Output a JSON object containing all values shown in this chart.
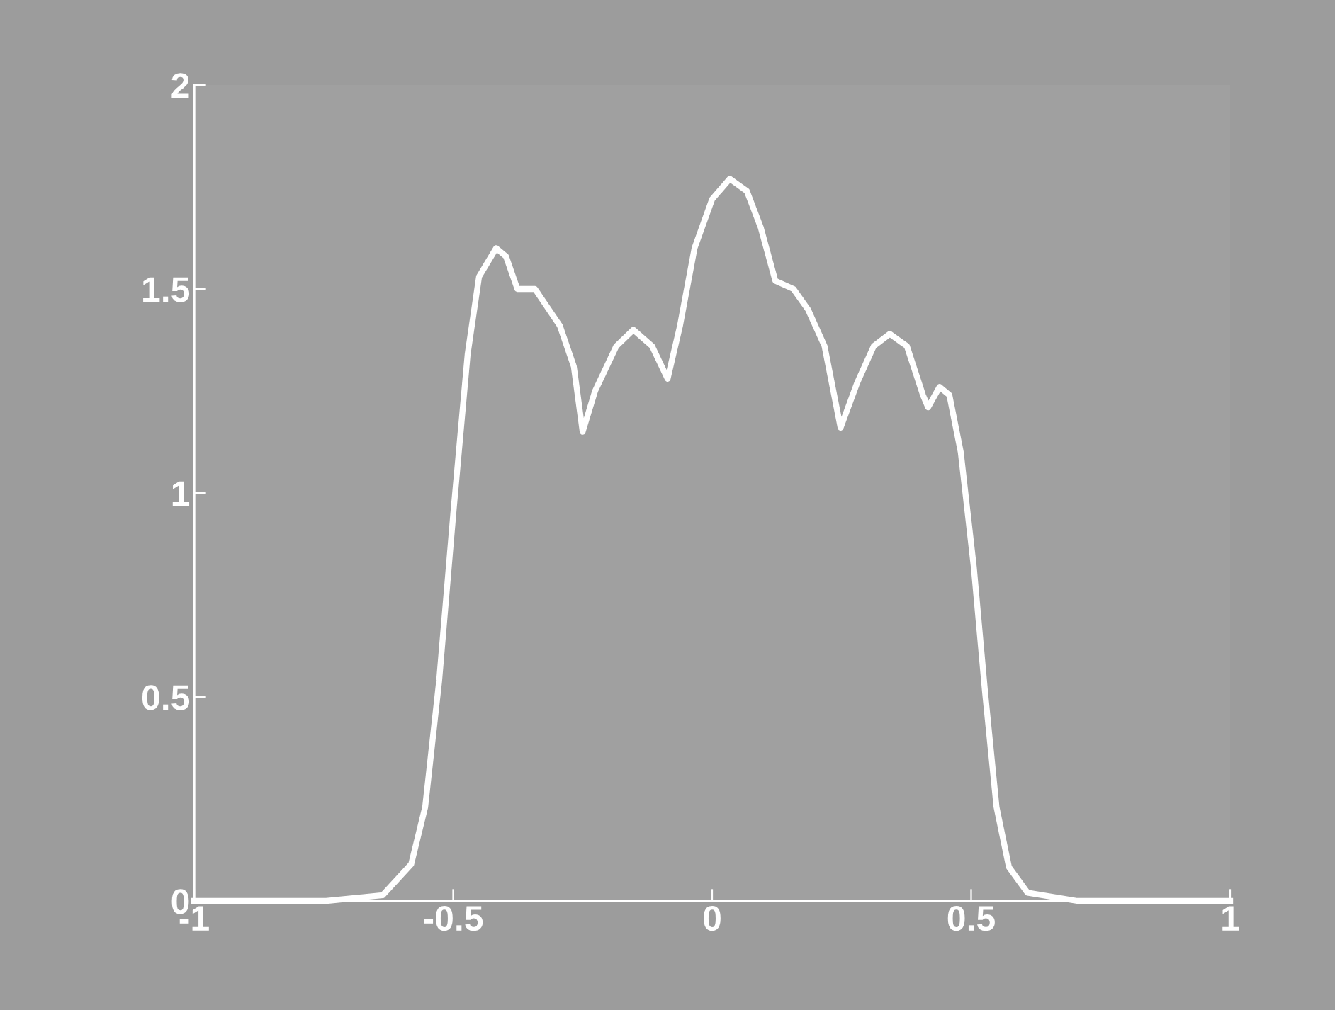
{
  "chart_data": {
    "type": "line",
    "x": [
      -1,
      -0.745,
      -0.636,
      -0.581,
      -0.554,
      -0.527,
      -0.499,
      -0.472,
      -0.45,
      -0.417,
      -0.398,
      -0.376,
      -0.342,
      -0.294,
      -0.267,
      -0.25,
      -0.226,
      -0.185,
      -0.152,
      -0.116,
      -0.086,
      -0.062,
      -0.034,
      0,
      0.034,
      0.067,
      0.094,
      0.122,
      0.157,
      0.185,
      0.217,
      0.248,
      0.28,
      0.312,
      0.343,
      0.376,
      0.407,
      0.417,
      0.439,
      0.458,
      0.48,
      0.505,
      0.527,
      0.549,
      0.573,
      0.609,
      0.705,
      1
    ],
    "series": [
      {
        "color": "#ffffff",
        "values": [
          0,
          0,
          0.014,
          0.09,
          0.23,
          0.54,
          0.96,
          1.34,
          1.53,
          1.6,
          1.58,
          1.5,
          1.5,
          1.41,
          1.31,
          1.15,
          1.25,
          1.36,
          1.4,
          1.36,
          1.28,
          1.41,
          1.6,
          1.72,
          1.77,
          1.74,
          1.65,
          1.52,
          1.5,
          1.45,
          1.36,
          1.16,
          1.27,
          1.36,
          1.39,
          1.36,
          1.24,
          1.21,
          1.26,
          1.24,
          1.1,
          0.82,
          0.51,
          0.23,
          0.083,
          0.02,
          0,
          0
        ]
      }
    ],
    "xlim": [
      -1,
      1
    ],
    "ylim": [
      0,
      2
    ],
    "xticks": [
      {
        "value": -1,
        "label": "-1"
      },
      {
        "value": -0.5,
        "label": "-0.5"
      },
      0,
      0.5,
      1
    ],
    "yticks": [
      0,
      0.5,
      1,
      1.5,
      2
    ],
    "grid": false,
    "legend": false,
    "marker": "none",
    "line_style": "solid"
  }
}
